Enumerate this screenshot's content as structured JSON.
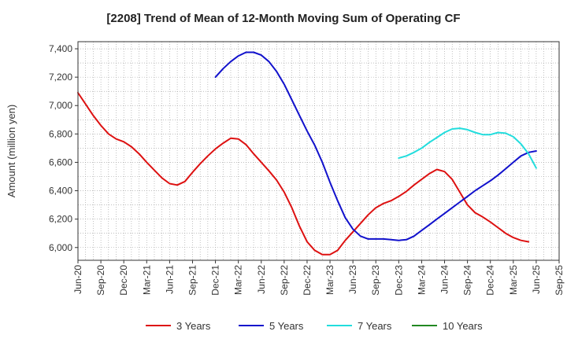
{
  "chart_data": {
    "type": "line",
    "title": "[2208]  Trend of Mean of 12-Month Moving Sum of Operating CF",
    "xlabel": "",
    "ylabel": "Amount (million yen)",
    "ylim": [
      5910,
      7450
    ],
    "yticks": [
      6000,
      6200,
      6400,
      6600,
      6800,
      7000,
      7200,
      7400
    ],
    "ytick_labels": [
      "6,000",
      "6,200",
      "6,400",
      "6,600",
      "6,800",
      "7,000",
      "7,200",
      "7,400"
    ],
    "x_start": "Jun-20",
    "x_months": 63,
    "xtick_labels": [
      "Jun-20",
      "Sep-20",
      "Dec-20",
      "Mar-21",
      "Jun-21",
      "Sep-21",
      "Dec-21",
      "Mar-22",
      "Jun-22",
      "Sep-22",
      "Dec-22",
      "Mar-23",
      "Jun-23",
      "Sep-23",
      "Dec-23",
      "Mar-24",
      "Jun-24",
      "Sep-24",
      "Dec-24",
      "Mar-25",
      "Jun-25",
      "Sep-25"
    ],
    "grid": true,
    "legend_position": "bottom",
    "series": [
      {
        "name": "3 Years",
        "color": "#dd1111",
        "start_index": 0,
        "values": [
          7090,
          7010,
          6930,
          6860,
          6800,
          6765,
          6745,
          6710,
          6660,
          6600,
          6545,
          6490,
          6450,
          6440,
          6465,
          6530,
          6590,
          6645,
          6695,
          6735,
          6770,
          6765,
          6725,
          6660,
          6600,
          6540,
          6475,
          6390,
          6280,
          6150,
          6040,
          5980,
          5950,
          5950,
          5980,
          6050,
          6110,
          6170,
          6230,
          6280,
          6310,
          6330,
          6360,
          6395,
          6440,
          6480,
          6520,
          6550,
          6535,
          6480,
          6390,
          6300,
          6245,
          6215,
          6180,
          6140,
          6100,
          6070,
          6050,
          6040
        ]
      },
      {
        "name": "5 Years",
        "color": "#1111cc",
        "start_index": 18,
        "values": [
          7200,
          7260,
          7310,
          7350,
          7375,
          7375,
          7355,
          7310,
          7240,
          7150,
          7040,
          6930,
          6820,
          6720,
          6600,
          6460,
          6330,
          6210,
          6130,
          6080,
          6060,
          6060,
          6060,
          6055,
          6050,
          6055,
          6080,
          6120,
          6160,
          6200,
          6240,
          6280,
          6320,
          6360,
          6400,
          6435,
          6470,
          6510,
          6555,
          6600,
          6645,
          6670,
          6680
        ]
      },
      {
        "name": "7 Years",
        "color": "#22dddd",
        "start_index": 42,
        "values": [
          6630,
          6645,
          6670,
          6700,
          6740,
          6775,
          6810,
          6835,
          6840,
          6830,
          6810,
          6795,
          6795,
          6810,
          6805,
          6780,
          6730,
          6660,
          6560
        ]
      },
      {
        "name": "10 Years",
        "color": "#228822",
        "start_index": 0,
        "values": []
      }
    ]
  }
}
